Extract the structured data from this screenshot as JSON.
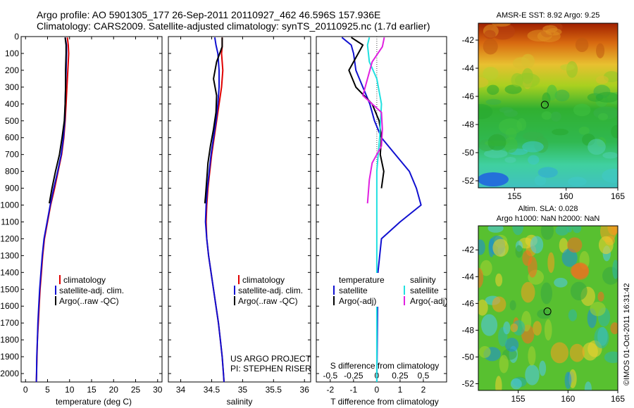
{
  "header": {
    "line1": "Argo profile: AO 5901305_177 26-Sep-2011 20110927_462 46.596S 157.936E",
    "line2": "Climatology: CARS2009. Satellite-adjusted climatology: synTS_20110925.nc (1.7d earlier)"
  },
  "colors": {
    "climatology": "#e00000",
    "satellite": "#1010d0",
    "argo": "#000000",
    "salinity_satellite": "#20e0e0",
    "salinity_argo": "#e020e0"
  },
  "credits": {
    "project": "US ARGO PROJECT",
    "pi": "PI: STEPHEN RISER"
  },
  "watermark": "©IMOS 01-Oct-2011 16:31:42",
  "chart_data": [
    {
      "type": "line",
      "panel": "temperature",
      "xlabel": "temperature (deg C)",
      "ylabel": "",
      "xlim": [
        -1,
        31
      ],
      "ylim": [
        2050,
        0
      ],
      "xticks": [
        0,
        5,
        10,
        15,
        20,
        25,
        30
      ],
      "yticks": [
        0,
        100,
        200,
        300,
        400,
        500,
        600,
        700,
        800,
        900,
        1000,
        1100,
        1200,
        1300,
        1400,
        1500,
        1600,
        1700,
        1800,
        1900,
        2000
      ],
      "legend": [
        "climatology",
        "satellite-adj. clim.",
        "Argo(..raw -QC)"
      ],
      "series": [
        {
          "name": "climatology",
          "color": "#e00000",
          "points": [
            [
              9.5,
              5
            ],
            [
              9.7,
              50
            ],
            [
              9.8,
              100
            ],
            [
              9.6,
              200
            ],
            [
              9.4,
              300
            ],
            [
              9.2,
              400
            ],
            [
              9.0,
              500
            ],
            [
              8.7,
              600
            ],
            [
              8.2,
              700
            ],
            [
              7.4,
              800
            ],
            [
              6.6,
              900
            ],
            [
              5.7,
              1000
            ],
            [
              5.0,
              1100
            ],
            [
              4.3,
              1200
            ],
            [
              3.9,
              1300
            ],
            [
              3.6,
              1400
            ],
            [
              3.3,
              1500
            ],
            [
              3.1,
              1600
            ],
            [
              2.9,
              1700
            ],
            [
              2.7,
              1800
            ],
            [
              2.6,
              1900
            ],
            [
              2.5,
              2000
            ],
            [
              2.45,
              2050
            ]
          ]
        },
        {
          "name": "satellite-adj. clim.",
          "color": "#1010d0",
          "points": [
            [
              9.0,
              5
            ],
            [
              9.3,
              50
            ],
            [
              9.3,
              100
            ],
            [
              9.2,
              200
            ],
            [
              9.1,
              300
            ],
            [
              9.0,
              400
            ],
            [
              8.9,
              500
            ],
            [
              8.6,
              600
            ],
            [
              8.1,
              700
            ],
            [
              7.3,
              800
            ],
            [
              6.4,
              900
            ],
            [
              5.6,
              1000
            ],
            [
              4.9,
              1100
            ],
            [
              4.2,
              1200
            ],
            [
              3.8,
              1300
            ],
            [
              3.5,
              1400
            ],
            [
              3.2,
              1500
            ],
            [
              3.0,
              1600
            ],
            [
              2.8,
              1700
            ],
            [
              2.7,
              1800
            ],
            [
              2.55,
              1900
            ],
            [
              2.5,
              2000
            ],
            [
              2.45,
              2050
            ]
          ]
        },
        {
          "name": "Argo(..raw -QC)",
          "color": "#000000",
          "points": [
            [
              9.0,
              5
            ],
            [
              9.2,
              50
            ],
            [
              9.2,
              100
            ],
            [
              9.1,
              200
            ],
            [
              9.1,
              300
            ],
            [
              9.0,
              400
            ],
            [
              8.8,
              500
            ],
            [
              8.3,
              600
            ],
            [
              7.7,
              700
            ],
            [
              6.8,
              800
            ],
            [
              6.0,
              900
            ],
            [
              5.4,
              990
            ]
          ]
        }
      ]
    },
    {
      "type": "line",
      "panel": "salinity",
      "xlabel": "salinity",
      "ylabel": "",
      "xlim": [
        33.8,
        36.1
      ],
      "ylim": [
        2050,
        0
      ],
      "xticks": [
        34,
        34.5,
        35,
        35.5,
        36
      ],
      "xticklabels": [
        "34",
        "34.5",
        "35",
        "35.5",
        "36"
      ],
      "legend": [
        "climatology",
        "satellite-adj. clim.",
        "Argo(..raw -QC)"
      ],
      "series": [
        {
          "name": "climatology",
          "color": "#e00000",
          "points": [
            [
              34.67,
              5
            ],
            [
              34.67,
              60
            ],
            [
              34.66,
              100
            ],
            [
              34.68,
              200
            ],
            [
              34.66,
              300
            ],
            [
              34.62,
              400
            ],
            [
              34.58,
              500
            ],
            [
              34.54,
              600
            ],
            [
              34.5,
              700
            ],
            [
              34.47,
              800
            ],
            [
              34.44,
              900
            ],
            [
              34.42,
              1000
            ],
            [
              34.41,
              1100
            ],
            [
              34.42,
              1200
            ],
            [
              34.45,
              1300
            ],
            [
              34.49,
              1400
            ],
            [
              34.53,
              1500
            ],
            [
              34.57,
              1600
            ],
            [
              34.61,
              1700
            ],
            [
              34.64,
              1800
            ],
            [
              34.67,
              1900
            ],
            [
              34.69,
              2000
            ],
            [
              34.7,
              2050
            ]
          ]
        },
        {
          "name": "satellite-adj. clim.",
          "color": "#1010d0",
          "points": [
            [
              34.55,
              5
            ],
            [
              34.57,
              50
            ],
            [
              34.6,
              100
            ],
            [
              34.62,
              200
            ],
            [
              34.62,
              300
            ],
            [
              34.6,
              400
            ],
            [
              34.57,
              500
            ],
            [
              34.53,
              600
            ],
            [
              34.49,
              700
            ],
            [
              34.46,
              800
            ],
            [
              34.43,
              900
            ],
            [
              34.41,
              1000
            ],
            [
              34.4,
              1100
            ],
            [
              34.42,
              1200
            ],
            [
              34.45,
              1300
            ],
            [
              34.49,
              1400
            ],
            [
              34.53,
              1500
            ],
            [
              34.57,
              1600
            ],
            [
              34.61,
              1700
            ],
            [
              34.64,
              1800
            ],
            [
              34.67,
              1900
            ],
            [
              34.69,
              2000
            ],
            [
              34.7,
              2050
            ]
          ]
        },
        {
          "name": "Argo(..raw -QC)",
          "color": "#000000",
          "points": [
            [
              34.67,
              5
            ],
            [
              34.67,
              60
            ],
            [
              34.63,
              100
            ],
            [
              34.58,
              150
            ],
            [
              34.53,
              250
            ],
            [
              34.58,
              350
            ],
            [
              34.57,
              450
            ],
            [
              34.53,
              550
            ],
            [
              34.48,
              650
            ],
            [
              34.44,
              750
            ],
            [
              34.42,
              850
            ],
            [
              34.4,
              950
            ],
            [
              34.39,
              990
            ]
          ]
        }
      ]
    },
    {
      "type": "line",
      "panel": "differences",
      "xlabel": "T difference from climatology",
      "xlabel_top": "S difference from climatology",
      "xlim": [
        -2.6,
        3.0
      ],
      "ylim": [
        2050,
        0
      ],
      "xticks": [
        -2,
        -1,
        0,
        1,
        2
      ],
      "xticks_S": [
        -0.5,
        -0.25,
        0,
        0.25,
        0.5
      ],
      "xticklabels_S": [
        "-0.5",
        "-0.25",
        "0",
        "0.25",
        "0.5"
      ],
      "legend_left": {
        "title": "temperature",
        "items": [
          "satellite",
          "Argo(-adj)"
        ]
      },
      "legend_right": {
        "title": "salinity",
        "items": [
          "satellite",
          "Argo(-adj)"
        ]
      },
      "series": [
        {
          "name": "temperature satellite",
          "color": "#1010d0",
          "points": [
            [
              -1.5,
              5
            ],
            [
              -1.1,
              50
            ],
            [
              -1.0,
              100
            ],
            [
              -0.9,
              200
            ],
            [
              -0.6,
              300
            ],
            [
              -0.3,
              400
            ],
            [
              -0.1,
              500
            ],
            [
              0.2,
              600
            ],
            [
              0.8,
              700
            ],
            [
              1.4,
              800
            ],
            [
              1.7,
              900
            ],
            [
              1.9,
              1000
            ],
            [
              1.0,
              1100
            ],
            [
              0.2,
              1200
            ],
            [
              0.05,
              1400
            ],
            [
              0.0,
              2050
            ]
          ]
        },
        {
          "name": "temperature Argo(-adj)",
          "color": "#000000",
          "points": [
            [
              -1.1,
              5
            ],
            [
              -0.6,
              50
            ],
            [
              -0.8,
              100
            ],
            [
              -1.2,
              200
            ],
            [
              -0.9,
              300
            ],
            [
              -0.2,
              400
            ],
            [
              0.1,
              500
            ],
            [
              0.2,
              600
            ],
            [
              0.15,
              700
            ],
            [
              0.3,
              800
            ],
            [
              0.2,
              900
            ]
          ]
        },
        {
          "name": "salinity satellite",
          "color": "#20e0e0",
          "points": [
            [
              -0.08,
              5
            ],
            [
              -0.1,
              50
            ],
            [
              -0.08,
              150
            ],
            [
              0.0,
              250
            ],
            [
              0.05,
              400
            ],
            [
              0.03,
              600
            ],
            [
              0.0,
              800
            ],
            [
              0.0,
              2050
            ]
          ]
        },
        {
          "name": "salinity Argo(-adj)",
          "color": "#e020e0",
          "points": [
            [
              0.08,
              5
            ],
            [
              0.06,
              60
            ],
            [
              -0.05,
              150
            ],
            [
              -0.1,
              250
            ],
            [
              -0.15,
              350
            ],
            [
              0.05,
              450
            ],
            [
              0.06,
              550
            ],
            [
              0.05,
              650
            ],
            [
              -0.05,
              750
            ],
            [
              -0.08,
              850
            ],
            [
              -0.1,
              990
            ]
          ]
        }
      ]
    },
    {
      "type": "heatmap",
      "panel": "sst-map",
      "title": "AMSR-E SST: 8.92  Argo: 9.25",
      "xlim": [
        151.5,
        165
      ],
      "ylim": [
        -52.5,
        -40.8
      ],
      "xticks": [
        155,
        160,
        165
      ],
      "yticks": [
        -42,
        -44,
        -46,
        -48,
        -50,
        -52
      ],
      "argo_position": {
        "lon": 157.936,
        "lat": -46.596
      }
    },
    {
      "type": "heatmap",
      "panel": "sla-map",
      "title_line1": "Altim. SLA: 0.028",
      "title_line2": "Argo h1000: NaN h2000: NaN",
      "xlim": [
        151,
        165
      ],
      "ylim": [
        -52.5,
        -40.2
      ],
      "xticks": [
        155,
        160,
        165
      ],
      "yticks": [
        -42,
        -44,
        -46,
        -48,
        -50,
        -52
      ],
      "argo_position": {
        "lon": 157.936,
        "lat": -46.596
      }
    }
  ]
}
